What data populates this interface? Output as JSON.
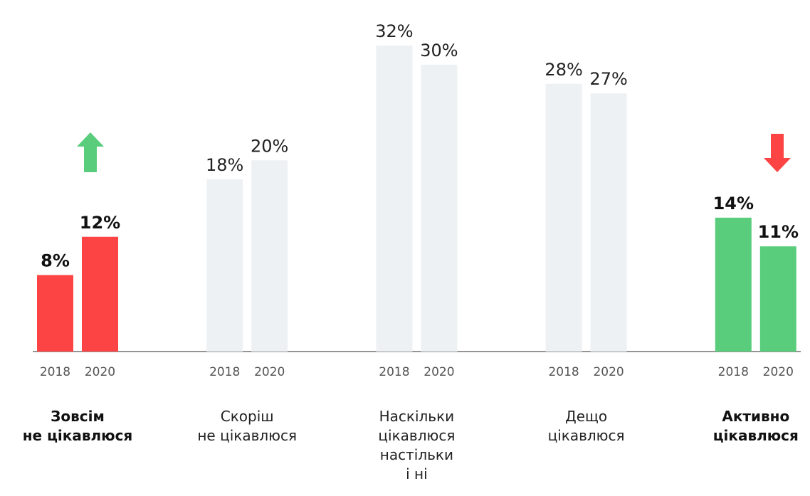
{
  "chart_data": {
    "type": "bar",
    "categories": [
      "Зовсім\nне цікавлюся",
      "Скоріш\nне цікавлюся",
      "Наскільки\nцікавлюся\nнастільки\nі ні",
      "Дещо\nцікавлюся",
      "Активно\nцікавлюся"
    ],
    "series": [
      {
        "name": "2018",
        "values": [
          8,
          18,
          32,
          28,
          14
        ],
        "value_labels": [
          "8%",
          "18%",
          "32%",
          "28%",
          "14%"
        ]
      },
      {
        "name": "2020",
        "values": [
          12,
          20,
          30,
          27,
          11
        ],
        "value_labels": [
          "12%",
          "20%",
          "30%",
          "27%",
          "11%"
        ]
      }
    ],
    "category_colors": [
      "#fc4444",
      "#eef1f4",
      "#eef1f4",
      "#eef1f4",
      "#5acd7c"
    ],
    "highlight": [
      true,
      false,
      false,
      false,
      true
    ],
    "ylim": [
      0,
      32
    ]
  }
}
